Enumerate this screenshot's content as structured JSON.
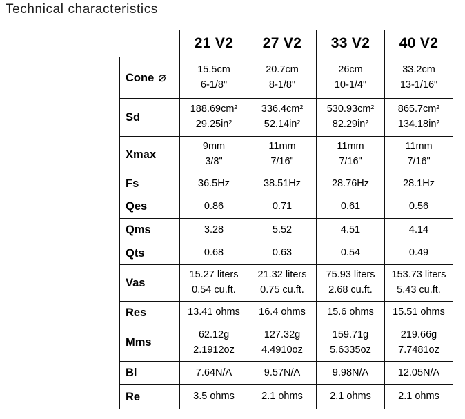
{
  "page": {
    "title": "Technical characteristics"
  },
  "table": {
    "columns": [
      "21 V2",
      "27 V2",
      "33 V2",
      "40 V2"
    ],
    "rows": [
      {
        "label": "Cone",
        "icon": "⌀",
        "values": [
          "15.5cm\n6-1/8\"",
          "20.7cm\n8-1/8\"",
          "26cm\n10-1/4\"",
          "33.2cm\n13-1/16\""
        ]
      },
      {
        "label": "Sd",
        "values": [
          "188.69cm²\n29.25in²",
          "336.4cm²\n52.14in²",
          "530.93cm²\n82.29in²",
          "865.7cm²\n134.18in²"
        ]
      },
      {
        "label": "Xmax",
        "values": [
          "9mm\n3/8\"",
          "11mm\n7/16\"",
          "11mm\n7/16\"",
          "11mm\n7/16\""
        ]
      },
      {
        "label": "Fs",
        "values": [
          "36.5Hz",
          "38.51Hz",
          "28.76Hz",
          "28.1Hz"
        ]
      },
      {
        "label": "Qes",
        "values": [
          "0.86",
          "0.71",
          "0.61",
          "0.56"
        ]
      },
      {
        "label": "Qms",
        "values": [
          "3.28",
          "5.52",
          "4.51",
          "4.14"
        ]
      },
      {
        "label": "Qts",
        "values": [
          "0.68",
          "0.63",
          "0.54",
          "0.49"
        ]
      },
      {
        "label": "Vas",
        "values": [
          "15.27 liters\n0.54 cu.ft.",
          "21.32 liters\n0.75 cu.ft.",
          "75.93 liters\n2.68 cu.ft.",
          "153.73 liters\n5.43 cu.ft."
        ]
      },
      {
        "label": "Res",
        "values": [
          "13.41 ohms",
          "16.4 ohms",
          "15.6 ohms",
          "15.51 ohms"
        ]
      },
      {
        "label": "Mms",
        "values": [
          "62.12g\n2.1912oz",
          "127.32g\n4.4910oz",
          "159.71g\n5.6335oz",
          "219.66g\n7.7481oz"
        ]
      },
      {
        "label": "Bl",
        "values": [
          "7.64N/A",
          "9.57N/A",
          "9.98N/A",
          "12.05N/A"
        ]
      },
      {
        "label": "Re",
        "values": [
          "3.5 ohms",
          "2.1 ohms",
          "2.1 ohms",
          "2.1 ohms"
        ]
      }
    ]
  }
}
